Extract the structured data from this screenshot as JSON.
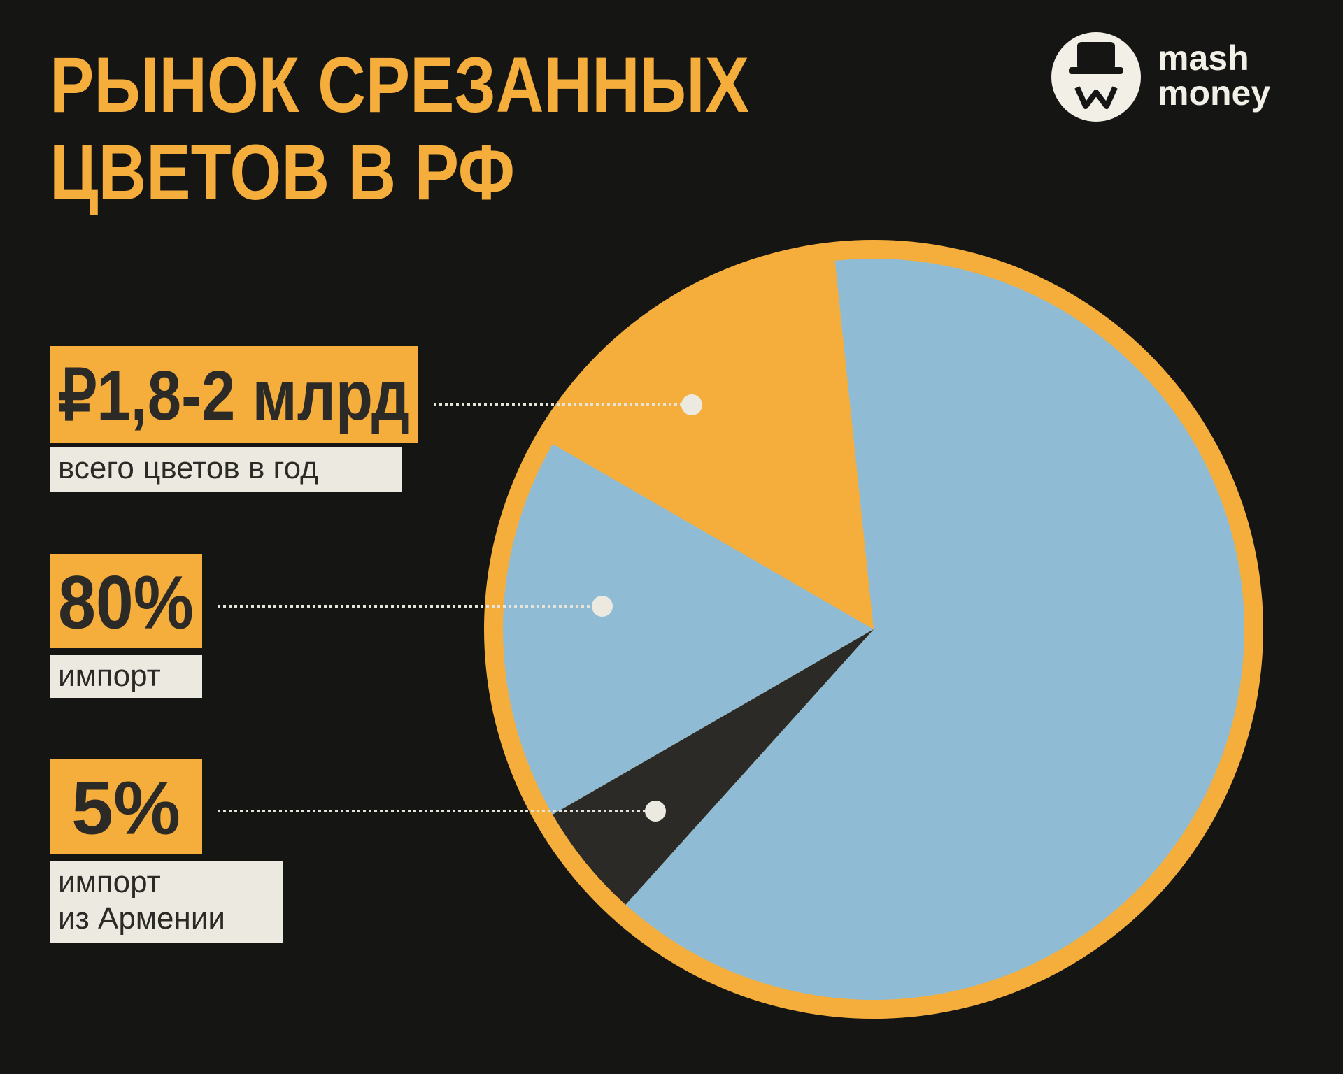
{
  "chart_data": {
    "type": "pie",
    "title": [
      "РЫНОК СРЕЗАННЫХ",
      "ЦВЕТОВ В РФ"
    ],
    "brand": [
      "mash",
      "money"
    ],
    "total": {
      "label": "₽1,8-2 млрд",
      "caption": [
        "всего цветов в год"
      ]
    },
    "slices": [
      {
        "value": 15,
        "color": "#f5ae3c"
      },
      {
        "value": 80,
        "label": "80%",
        "caption": [
          "импорт"
        ],
        "color": "#8fbcd4"
      },
      {
        "value": 5,
        "label": "5%",
        "caption": [
          "импорт",
          "из Армении"
        ],
        "color": "#2b2a26"
      }
    ]
  }
}
